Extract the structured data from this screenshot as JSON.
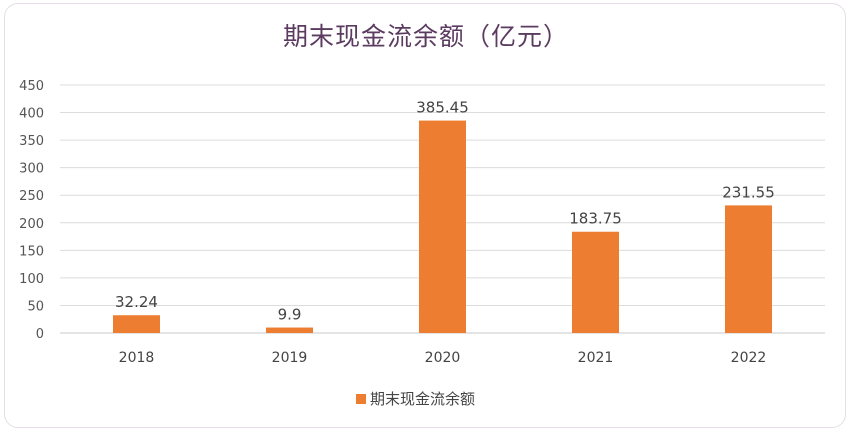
{
  "chart_data": {
    "type": "bar",
    "title": "期末现金流余额（亿元）",
    "categories": [
      "2018",
      "2019",
      "2020",
      "2021",
      "2022"
    ],
    "series": [
      {
        "name": "期末现金流余额",
        "values": [
          32.24,
          9.9,
          385.45,
          183.75,
          231.55
        ],
        "data_labels": [
          "32.24",
          "9.9",
          "385.45",
          "183.75",
          "231.55"
        ],
        "color": "#ed7d31"
      }
    ],
    "ylim": [
      0,
      450
    ],
    "yticks": [
      0,
      50,
      100,
      150,
      200,
      250,
      300,
      350,
      400,
      450
    ],
    "grid": true,
    "legend_position": "bottom"
  }
}
